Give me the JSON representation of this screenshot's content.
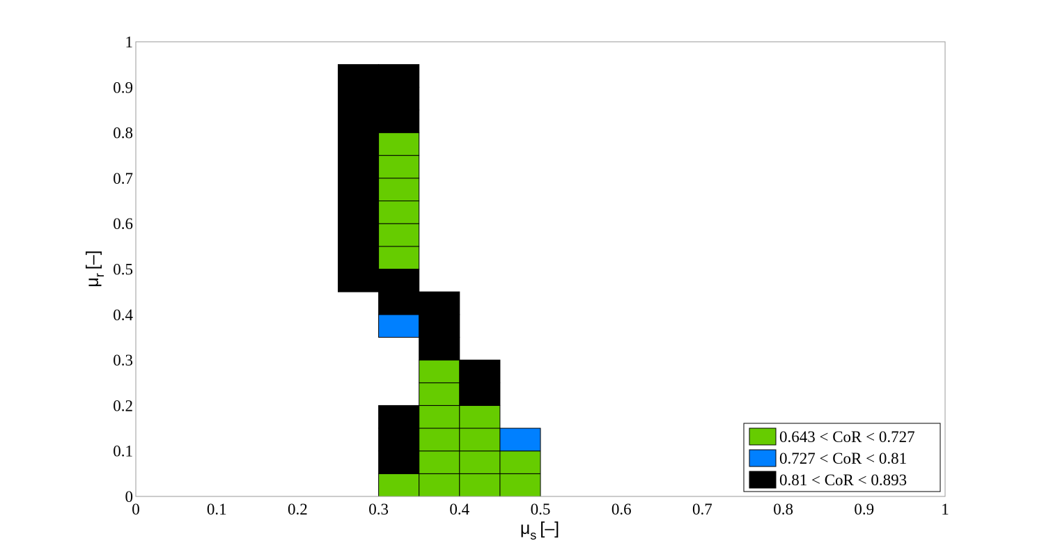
{
  "chart_data": {
    "type": "heatmap",
    "title": "",
    "xlabel": {
      "main": "μ",
      "sub": "s",
      "unit": "[–]"
    },
    "ylabel": {
      "main": "μ",
      "sub": "r",
      "unit": "[–]"
    },
    "xlim": [
      0,
      1
    ],
    "ylim": [
      0,
      1
    ],
    "xticks": [
      "0",
      "0.1",
      "0.2",
      "0.3",
      "0.4",
      "0.5",
      "0.6",
      "0.7",
      "0.8",
      "0.9",
      "1"
    ],
    "yticks": [
      "0",
      "0.1",
      "0.2",
      "0.3",
      "0.4",
      "0.5",
      "0.6",
      "0.7",
      "0.8",
      "0.9",
      "1"
    ],
    "grid": false,
    "legend_position": "bottom-right",
    "cell_size": 0.05,
    "classes": [
      {
        "id": "low",
        "label": "0.643 < CoR < 0.727",
        "color": "#66cc00"
      },
      {
        "id": "mid",
        "label": "0.727 < CoR < 0.81",
        "color": "#0080ff"
      },
      {
        "id": "high",
        "label": "0.81 < CoR < 0.893",
        "color": "#000000"
      }
    ],
    "cells": [
      {
        "x": 0.25,
        "y": 0.45,
        "class": "high"
      },
      {
        "x": 0.25,
        "y": 0.5,
        "class": "high"
      },
      {
        "x": 0.25,
        "y": 0.55,
        "class": "high"
      },
      {
        "x": 0.25,
        "y": 0.6,
        "class": "high"
      },
      {
        "x": 0.25,
        "y": 0.65,
        "class": "high"
      },
      {
        "x": 0.25,
        "y": 0.7,
        "class": "high"
      },
      {
        "x": 0.25,
        "y": 0.75,
        "class": "high"
      },
      {
        "x": 0.25,
        "y": 0.8,
        "class": "high"
      },
      {
        "x": 0.25,
        "y": 0.85,
        "class": "high"
      },
      {
        "x": 0.25,
        "y": 0.9,
        "class": "high"
      },
      {
        "x": 0.3,
        "y": 0.0,
        "class": "low"
      },
      {
        "x": 0.3,
        "y": 0.05,
        "class": "high"
      },
      {
        "x": 0.3,
        "y": 0.1,
        "class": "high"
      },
      {
        "x": 0.3,
        "y": 0.15,
        "class": "high"
      },
      {
        "x": 0.3,
        "y": 0.35,
        "class": "mid"
      },
      {
        "x": 0.3,
        "y": 0.4,
        "class": "high"
      },
      {
        "x": 0.3,
        "y": 0.45,
        "class": "high"
      },
      {
        "x": 0.3,
        "y": 0.5,
        "class": "low"
      },
      {
        "x": 0.3,
        "y": 0.55,
        "class": "low"
      },
      {
        "x": 0.3,
        "y": 0.6,
        "class": "low"
      },
      {
        "x": 0.3,
        "y": 0.65,
        "class": "low"
      },
      {
        "x": 0.3,
        "y": 0.7,
        "class": "low"
      },
      {
        "x": 0.3,
        "y": 0.75,
        "class": "low"
      },
      {
        "x": 0.3,
        "y": 0.8,
        "class": "high"
      },
      {
        "x": 0.3,
        "y": 0.85,
        "class": "high"
      },
      {
        "x": 0.3,
        "y": 0.9,
        "class": "high"
      },
      {
        "x": 0.35,
        "y": 0.0,
        "class": "low"
      },
      {
        "x": 0.35,
        "y": 0.05,
        "class": "low"
      },
      {
        "x": 0.35,
        "y": 0.1,
        "class": "low"
      },
      {
        "x": 0.35,
        "y": 0.15,
        "class": "low"
      },
      {
        "x": 0.35,
        "y": 0.2,
        "class": "low"
      },
      {
        "x": 0.35,
        "y": 0.25,
        "class": "low"
      },
      {
        "x": 0.35,
        "y": 0.3,
        "class": "high"
      },
      {
        "x": 0.35,
        "y": 0.35,
        "class": "high"
      },
      {
        "x": 0.35,
        "y": 0.4,
        "class": "high"
      },
      {
        "x": 0.4,
        "y": 0.0,
        "class": "low"
      },
      {
        "x": 0.4,
        "y": 0.05,
        "class": "low"
      },
      {
        "x": 0.4,
        "y": 0.1,
        "class": "low"
      },
      {
        "x": 0.4,
        "y": 0.15,
        "class": "low"
      },
      {
        "x": 0.4,
        "y": 0.2,
        "class": "high"
      },
      {
        "x": 0.4,
        "y": 0.25,
        "class": "high"
      },
      {
        "x": 0.45,
        "y": 0.0,
        "class": "low"
      },
      {
        "x": 0.45,
        "y": 0.05,
        "class": "low"
      },
      {
        "x": 0.45,
        "y": 0.1,
        "class": "mid"
      }
    ]
  }
}
